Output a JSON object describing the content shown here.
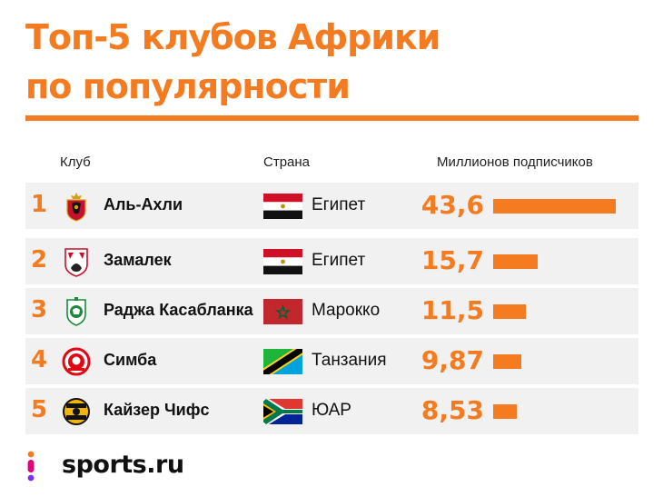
{
  "title_lines": [
    "Топ-5 клубов Африки",
    "по популярности"
  ],
  "columns": {
    "club": "Клуб",
    "country": "Страна",
    "followers": "Миллионов подписчиков"
  },
  "brand": "sports.ru",
  "colors": {
    "accent": "#f47b20",
    "row_bg": "#f1f1f1"
  },
  "chart_data": {
    "type": "bar",
    "title": "Топ-5 клубов Африки по популярности",
    "ylabel": "Миллионов подписчиков",
    "categories": [
      "Аль-Ахли",
      "Замалек",
      "Раджа Касабланка",
      "Симба",
      "Кайзер Чифс"
    ],
    "values": [
      43.6,
      15.7,
      11.5,
      9.87,
      8.53
    ],
    "ylim": [
      0,
      43.6
    ],
    "rows": [
      {
        "rank": "1",
        "club": "Аль-Ахли",
        "country": "Египет",
        "value": 43.6,
        "value_label": "43,6",
        "flag": "egypt",
        "logo": "al-ahly-crest"
      },
      {
        "rank": "2",
        "club": "Замалек",
        "country": "Египет",
        "value": 15.7,
        "value_label": "15,7",
        "flag": "egypt",
        "logo": "zamalek-crest"
      },
      {
        "rank": "3",
        "club": "Раджа Касабланка",
        "country": "Марокко",
        "value": 11.5,
        "value_label": "11,5",
        "flag": "morocco",
        "logo": "raja-crest"
      },
      {
        "rank": "4",
        "club": "Симба",
        "country": "Танзания",
        "value": 9.87,
        "value_label": "9,87",
        "flag": "tanzania",
        "logo": "simba-crest"
      },
      {
        "rank": "5",
        "club": "Кайзер Чифс",
        "country": "ЮАР",
        "value": 8.53,
        "value_label": "8,53",
        "flag": "south-africa",
        "logo": "kaizer-chiefs-crest"
      }
    ]
  }
}
